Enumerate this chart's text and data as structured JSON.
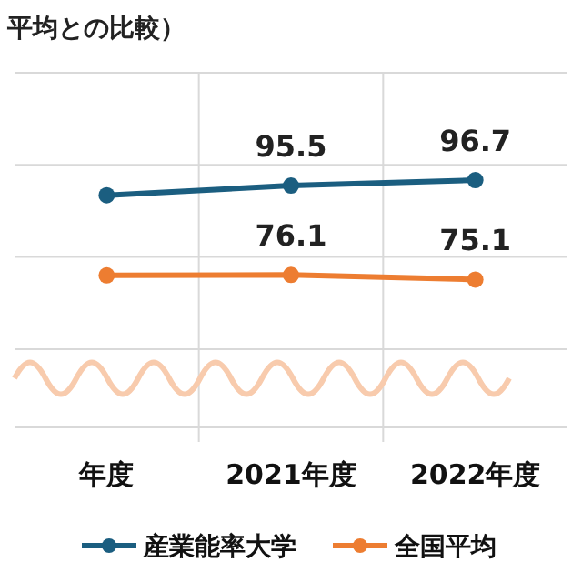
{
  "chart_data": {
    "type": "line",
    "title": "平均との比較）",
    "categories": [
      "年度",
      "2021年度",
      "2022年度"
    ],
    "series": [
      {
        "name": "産業能率大学",
        "color": "#1b5e80",
        "values": [
          93.4,
          95.5,
          96.7
        ],
        "value_labels": [
          null,
          "95.5",
          "96.7"
        ]
      },
      {
        "name": "全国平均",
        "color": "#ed7d31",
        "values": [
          76.0,
          76.1,
          75.1
        ],
        "value_labels": [
          null,
          "76.1",
          "75.1"
        ]
      }
    ],
    "ylim": [
      43,
      120
    ],
    "yticks": [
      {
        "value": 60,
        "label": null
      },
      {
        "value": 80,
        "label": null
      },
      {
        "value": 100,
        "label": null
      },
      {
        "value": 120,
        "label": null
      }
    ],
    "grid": true,
    "legend": "bottom",
    "marker": "circle",
    "line_style": "solid",
    "tick_labels": "x"
  }
}
